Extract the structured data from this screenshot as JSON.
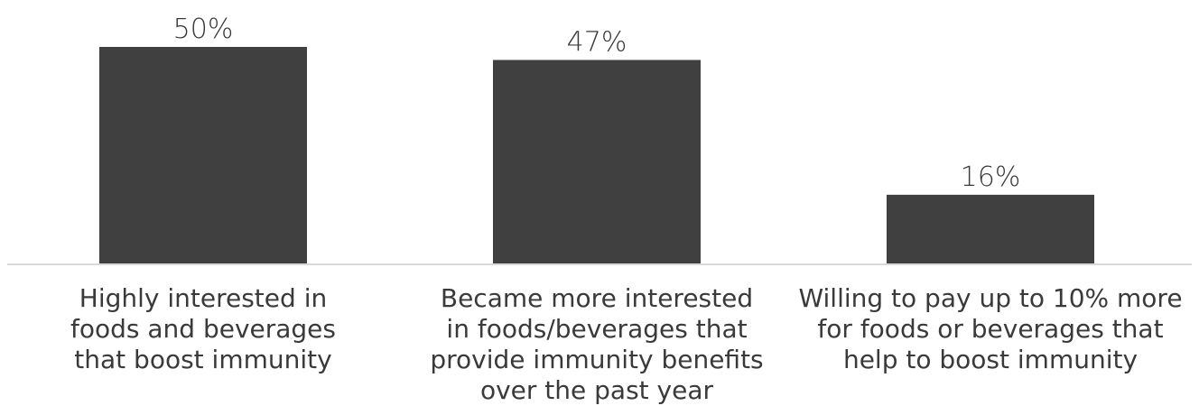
{
  "chart_data": {
    "type": "bar",
    "categories": [
      [
        "Highly interested in",
        "foods and beverages",
        "that boost immunity"
      ],
      [
        "Became more interested",
        "in foods/beverages that",
        "provide immunity benefits",
        "over the past year"
      ],
      [
        "Willing to pay up to 10% more",
        "for foods or beverages that",
        "help to boost immunity"
      ]
    ],
    "values": [
      50,
      47,
      16
    ],
    "data_labels": [
      "50%",
      "47%",
      "16%"
    ],
    "unit": "%",
    "ylim": [
      0,
      50
    ],
    "grid": false,
    "legend": "none",
    "title": "",
    "xlabel": "",
    "ylabel": ""
  },
  "colors": {
    "bar": "#404040",
    "baseline": "#d9d9d9",
    "text": "#3a3a3a"
  }
}
